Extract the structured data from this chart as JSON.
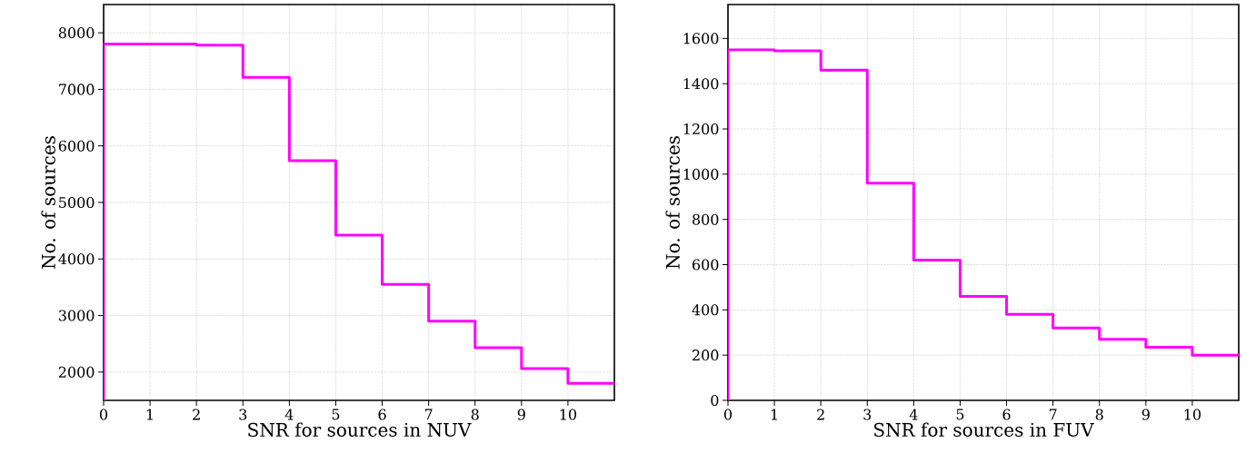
{
  "chart_data": [
    {
      "type": "histogram",
      "bins": [
        0,
        1,
        2,
        3,
        4,
        5,
        6,
        7,
        8,
        9,
        10,
        11
      ],
      "values": [
        7800,
        7800,
        7780,
        7210,
        5740,
        4420,
        3550,
        2900,
        2430,
        2060,
        1800
      ],
      "color": "#ff00ff",
      "xlim": [
        0,
        11
      ],
      "ylim": [
        1500,
        8500
      ],
      "xticks": [
        0,
        1,
        2,
        3,
        4,
        5,
        6,
        7,
        8,
        9,
        10
      ],
      "yticks": [
        2000,
        3000,
        4000,
        5000,
        6000,
        7000,
        8000
      ],
      "xlabel": "SNR for sources in NUV",
      "ylabel": "No. of sources",
      "grid": true
    },
    {
      "type": "histogram",
      "bins": [
        0,
        1,
        2,
        3,
        4,
        5,
        6,
        7,
        8,
        9,
        10,
        11
      ],
      "values": [
        1550,
        1545,
        1460,
        960,
        620,
        460,
        380,
        320,
        270,
        235,
        200
      ],
      "color": "#ff00ff",
      "xlim": [
        0,
        11
      ],
      "ylim": [
        0,
        1750
      ],
      "xticks": [
        0,
        1,
        2,
        3,
        4,
        5,
        6,
        7,
        8,
        9,
        10
      ],
      "yticks": [
        0,
        200,
        400,
        600,
        800,
        1000,
        1200,
        1400,
        1600
      ],
      "xlabel": "SNR for sources in FUV",
      "ylabel": "No. of sources",
      "grid": true
    }
  ]
}
